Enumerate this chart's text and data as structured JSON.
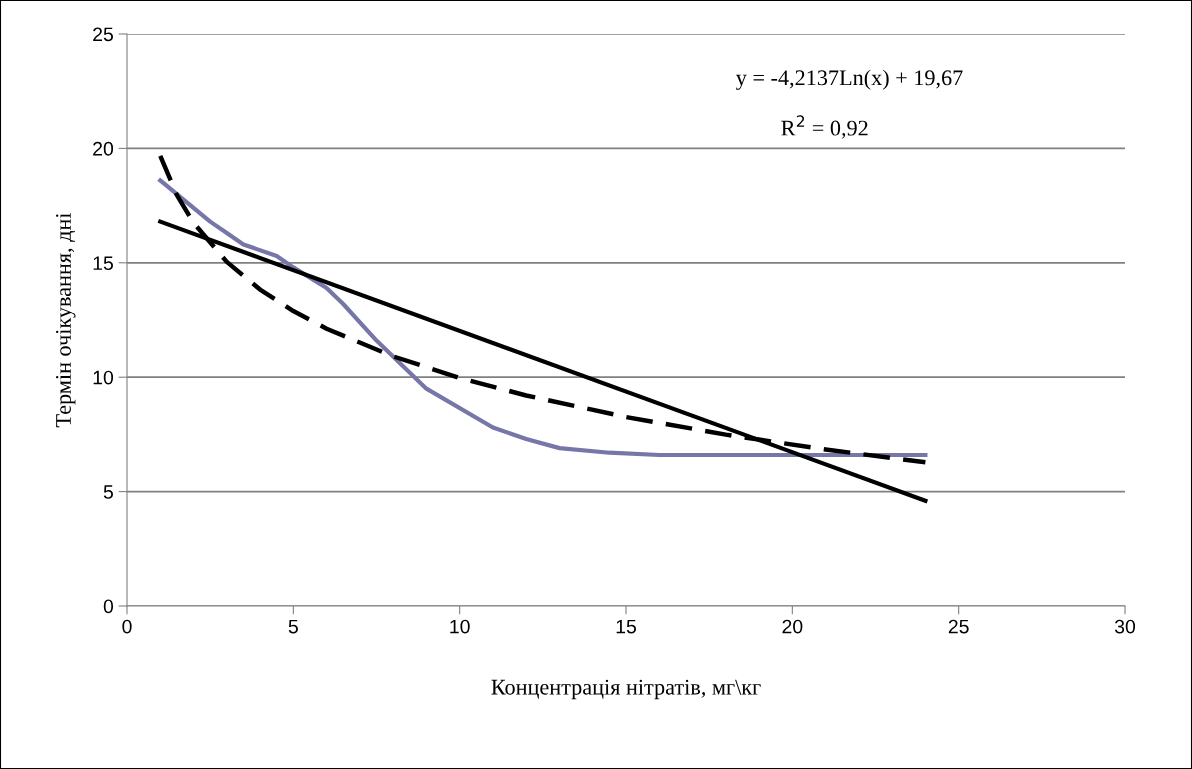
{
  "chart_data": {
    "type": "line",
    "xlabel": "Концентрація нітратів, мг\\кг",
    "ylabel": "Термін очікування, дні",
    "xlim": [
      0,
      30
    ],
    "xticks": [
      0,
      5,
      10,
      15,
      20,
      25,
      30
    ],
    "ylim": [
      0,
      25
    ],
    "yticks": [
      0,
      5,
      10,
      15,
      20,
      25
    ],
    "grid": "y",
    "legend": false,
    "marker": "none",
    "annotations": [
      "y = -4,2137Ln(x) + 19,67",
      "R$^{2}$ = 0,92"
    ],
    "series": [
      {
        "color": "#7676a8",
        "line_style": "solid",
        "x": [
          1,
          2.5,
          3,
          3.5,
          4.5,
          5,
          6,
          6.5,
          7.5,
          9,
          11,
          12,
          13,
          14.5,
          16,
          24
        ],
        "values": [
          18.6,
          16.8,
          16.3,
          15.8,
          15.3,
          14.8,
          13.9,
          13.2,
          11.6,
          9.5,
          7.8,
          7.3,
          6.9,
          6.7,
          6.6,
          6.6
        ]
      },
      {
        "color": "#000000",
        "line_style": "dashed",
        "x": [
          1,
          1.5,
          2,
          3,
          4,
          5,
          6,
          8,
          10,
          12,
          15,
          18,
          21,
          24
        ],
        "values": [
          19.67,
          17.96,
          16.75,
          15.04,
          13.83,
          12.89,
          12.12,
          10.91,
          9.97,
          9.2,
          8.26,
          7.49,
          6.84,
          6.28
        ]
      },
      {
        "color": "#000000",
        "line_style": "solid",
        "x": [
          1,
          24
        ],
        "values": [
          16.8,
          4.6
        ]
      }
    ]
  }
}
